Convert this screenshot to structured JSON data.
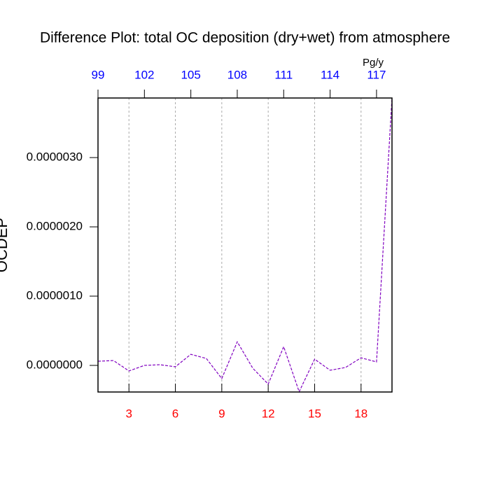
{
  "chart_data": {
    "type": "line",
    "title": "Difference Plot: total OC deposition (dry+wet) from atmosphere",
    "y_label": "OCDEP",
    "x2_unit": "Pg/y",
    "x": [
      1,
      2,
      3,
      4,
      5,
      6,
      7,
      8,
      9,
      10,
      11,
      12,
      13,
      14,
      15,
      16,
      17,
      18,
      19,
      20
    ],
    "series": [
      {
        "name": "OCDEP",
        "color": "#8000c0",
        "values": [
          6e-08,
          7e-08,
          -8e-08,
          0,
          1e-08,
          -2e-08,
          1.6e-07,
          1e-07,
          -1.9e-07,
          3.4e-07,
          -4e-08,
          -2.7e-07,
          2.7e-07,
          -3.8e-07,
          9e-08,
          -7e-08,
          -3e-08,
          1.1e-07,
          5e-08,
          3.86e-06
        ]
      }
    ],
    "xlim": [
      1,
      20
    ],
    "xticks": [
      3,
      6,
      9,
      12,
      15,
      18
    ],
    "xtick_color": "#ff0000",
    "x2lim": [
      99,
      118
    ],
    "x2ticks": [
      99,
      102,
      105,
      108,
      111,
      114,
      117
    ],
    "x2tick_color": "#0000ff",
    "ylim": [
      -3.84e-07,
      3.86e-06
    ],
    "yticks": [
      {
        "value": 0,
        "label": "0.0000000"
      },
      {
        "value": 1e-06,
        "label": "0.0000010"
      },
      {
        "value": 2e-06,
        "label": "0.0000020"
      },
      {
        "value": 3e-06,
        "label": "0.0000030"
      }
    ],
    "grid": true,
    "line_style": "dashed"
  }
}
